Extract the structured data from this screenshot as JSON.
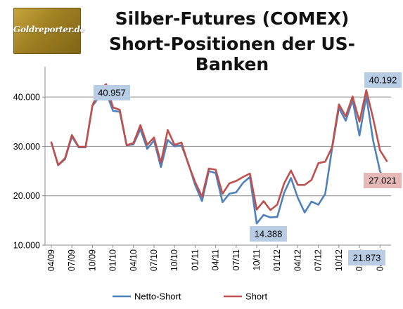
{
  "logo": {
    "text": "Goldreporter.de"
  },
  "chart_data": {
    "type": "line",
    "title": "Silber-Futures (COMEX)",
    "subtitle": "Short-Positionen der US-Banken",
    "xlabel": "",
    "ylabel": "",
    "ylim": [
      10000,
      45000
    ],
    "grid": true,
    "legend_position": "bottom",
    "y_ticks": [
      10000,
      20000,
      30000,
      40000
    ],
    "y_tick_labels": [
      "10.000",
      "20.000",
      "30.000",
      "40.000"
    ],
    "x_tick_labels": [
      "04/09",
      "07/09",
      "10/09",
      "01/10",
      "04/10",
      "07/10",
      "10/10",
      "01/11",
      "04/11",
      "07/11",
      "10/11",
      "01/12",
      "04/12",
      "07/12",
      "10/12",
      "01/13",
      "04/13"
    ],
    "x": [
      "04/09",
      "05/09",
      "06/09",
      "07/09",
      "08/09",
      "09/09",
      "10/09",
      "11/09",
      "12/09",
      "01/10",
      "02/10",
      "03/10",
      "04/10",
      "05/10",
      "06/10",
      "07/10",
      "08/10",
      "09/10",
      "10/10",
      "11/10",
      "12/10",
      "01/11",
      "02/11",
      "03/11",
      "04/11",
      "05/11",
      "06/11",
      "07/11",
      "08/11",
      "09/11",
      "10/11",
      "11/11",
      "12/11",
      "01/12",
      "02/12",
      "03/12",
      "04/12",
      "05/12",
      "06/12",
      "07/12",
      "08/12",
      "09/12",
      "10/12",
      "11/12",
      "12/12",
      "01/13",
      "02/13",
      "03/13",
      "04/13",
      "05/13"
    ],
    "series": [
      {
        "name": "Netto-Short",
        "color": "#4f81bd",
        "values": [
          30800,
          26200,
          27400,
          32000,
          29800,
          29800,
          38200,
          40000,
          40957,
          37200,
          37000,
          30200,
          30400,
          33500,
          29500,
          31200,
          25800,
          31300,
          30000,
          30200,
          26600,
          22200,
          18900,
          25000,
          24600,
          18700,
          20400,
          20700,
          22600,
          23800,
          14388,
          16100,
          15600,
          15700,
          20600,
          23600,
          19600,
          16600,
          18800,
          18200,
          20400,
          29500,
          37800,
          35200,
          39400,
          32200,
          40192,
          31200,
          25000,
          21873
        ]
      },
      {
        "name": "Short",
        "color": "#c0504d",
        "values": [
          30800,
          26200,
          27600,
          32300,
          29900,
          29900,
          38300,
          41400,
          42600,
          37900,
          37400,
          30200,
          30700,
          34300,
          30300,
          31800,
          26700,
          33300,
          30300,
          30800,
          26400,
          22800,
          19800,
          25500,
          25300,
          20400,
          22500,
          23000,
          23800,
          24500,
          17200,
          18900,
          17100,
          18200,
          22500,
          25100,
          22200,
          22200,
          23200,
          26600,
          26900,
          29800,
          38500,
          36100,
          40100,
          35000,
          41400,
          35700,
          29200,
          27021
        ]
      }
    ],
    "annotations": [
      {
        "text": "40.957",
        "series": "Netto-Short",
        "x": "12/09",
        "bg": "#b8cce4"
      },
      {
        "text": "40.192",
        "series": "Netto-Short",
        "x": "02/13",
        "bg": "#b8cce4"
      },
      {
        "text": "27.021",
        "series": "Short",
        "x": "05/13",
        "bg": "#e6b9b8"
      },
      {
        "text": "14.388",
        "series": "Netto-Short",
        "x": "10/11",
        "bg": "#b8cce4"
      },
      {
        "text": "21.873",
        "series": "Netto-Short",
        "x": "05/13",
        "bg": "#b8cce4"
      }
    ]
  }
}
